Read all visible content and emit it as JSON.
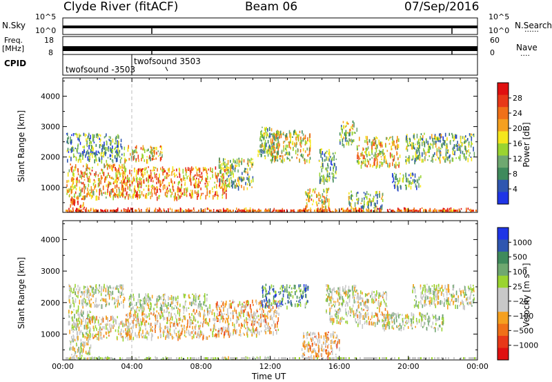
{
  "header": {
    "station": "Clyde River (fitACF)",
    "beam": "Beam 06",
    "date": "07/Sep/2016"
  },
  "nsky_panel": {
    "left_label": "N.Sky",
    "left_ticks": [
      "10^5",
      "10^0"
    ],
    "right_label": "N.Search",
    "right_dots": "......",
    "right_ticks": [
      "10^5",
      "10^0"
    ]
  },
  "freq_panel": {
    "left_label_line1": "Freq.",
    "left_label_line2": "[MHz]",
    "left_ticks": [
      "18",
      "8"
    ],
    "right_label": "Nave",
    "right_dots": "....",
    "right_ticks": [
      "60",
      "0"
    ]
  },
  "cpid_panel": {
    "label": "CPID",
    "entries": [
      {
        "text": "twofsound -3503",
        "start_hour": 0.0
      },
      {
        "text": "twofsound 3503",
        "start_hour": 4.0
      }
    ]
  },
  "power_panel": {
    "ylabel": "Slant Range [km]",
    "yticks": [
      1000,
      2000,
      3000,
      4000
    ],
    "colorbar_label": "Power [dB]",
    "colorbar_ticks": [
      4,
      8,
      12,
      16,
      20,
      24,
      28
    ],
    "colors": [
      "#1f35e6",
      "#2f56b0",
      "#3f8a5c",
      "#6fa870",
      "#9ad430",
      "#f5e61c",
      "#f5a020",
      "#f07018",
      "#e83818",
      "#e01010"
    ]
  },
  "velocity_panel": {
    "ylabel": "Slant Range [km]",
    "yticks": [
      1000,
      2000,
      3000,
      4000
    ],
    "colorbar_label": "Velocity [m s⁻¹]",
    "colorbar_ticks": [
      "1000",
      "500",
      "100",
      "25",
      "−25",
      "−100",
      "−500",
      "−1000"
    ],
    "colors": [
      "#1f35e6",
      "#2f56b0",
      "#3f8a5c",
      "#6fa870",
      "#9ad430",
      "#c8c8c8",
      "#c8c8c8",
      "#f5a020",
      "#f07018",
      "#e83818",
      "#e01010"
    ]
  },
  "time_axis": {
    "xlabel": "Time UT",
    "ticks": [
      "00:00",
      "04:00",
      "08:00",
      "12:00",
      "16:00",
      "20:00",
      "00:00"
    ]
  },
  "chart_data": [
    {
      "type": "heatmap",
      "title": "Power",
      "xlabel": "Time UT",
      "ylabel": "Slant Range [km]",
      "xlim": [
        0,
        24
      ],
      "ylim": [
        180,
        4600
      ],
      "colorbar": {
        "label": "Power [dB]",
        "range": [
          0,
          32
        ]
      },
      "grid": false,
      "regions": [
        {
          "t": [
            0.2,
            3.4
          ],
          "r": [
            1900,
            2800
          ],
          "value": 10
        },
        {
          "t": [
            0.2,
            3.6
          ],
          "r": [
            700,
            1800
          ],
          "value": 20
        },
        {
          "t": [
            0.4,
            1.3
          ],
          "r": [
            180,
            700
          ],
          "value": 26
        },
        {
          "t": [
            3.3,
            9.5
          ],
          "r": [
            700,
            1700
          ],
          "value": 22
        },
        {
          "t": [
            3.5,
            5.8
          ],
          "r": [
            1900,
            2400
          ],
          "value": 18
        },
        {
          "t": [
            9.0,
            11.0
          ],
          "r": [
            1000,
            2000
          ],
          "value": 14
        },
        {
          "t": [
            11.2,
            12.5
          ],
          "r": [
            2000,
            3000
          ],
          "value": 12
        },
        {
          "t": [
            12.0,
            14.3
          ],
          "r": [
            1900,
            2900
          ],
          "value": 16
        },
        {
          "t": [
            14.0,
            15.4
          ],
          "r": [
            250,
            1000
          ],
          "value": 17
        },
        {
          "t": [
            14.8,
            15.8
          ],
          "r": [
            1200,
            2300
          ],
          "value": 10
        },
        {
          "t": [
            16.0,
            17.0
          ],
          "r": [
            2400,
            3200
          ],
          "value": 14
        },
        {
          "t": [
            17.0,
            19.5
          ],
          "r": [
            1700,
            2700
          ],
          "value": 18
        },
        {
          "t": [
            19.8,
            23.8
          ],
          "r": [
            1900,
            2800
          ],
          "value": 12
        },
        {
          "t": [
            19.0,
            20.7
          ],
          "r": [
            1000,
            1500
          ],
          "value": 10
        },
        {
          "t": [
            16.5,
            18.5
          ],
          "r": [
            180,
            900
          ],
          "value": 12
        },
        {
          "t": [
            0.2,
            23.8
          ],
          "r": [
            180,
            350
          ],
          "value": 26
        }
      ]
    },
    {
      "type": "heatmap",
      "title": "Velocity",
      "xlabel": "Time UT",
      "ylabel": "Slant Range [km]",
      "xlim": [
        0,
        24
      ],
      "ylim": [
        180,
        4600
      ],
      "colorbar": {
        "label": "Velocity [m s⁻¹]",
        "range": [
          -1000,
          1000
        ]
      },
      "grid": false,
      "regions": [
        {
          "t": [
            0.3,
            3.6
          ],
          "r": [
            1900,
            2600
          ],
          "value": 0
        },
        {
          "t": [
            0.3,
            1.6
          ],
          "r": [
            180,
            1800
          ],
          "value": 0
        },
        {
          "t": [
            1.3,
            3.8
          ],
          "r": [
            900,
            1600
          ],
          "value": -150
        },
        {
          "t": [
            3.6,
            8.8
          ],
          "r": [
            900,
            1800
          ],
          "value": -200
        },
        {
          "t": [
            3.8,
            8.5
          ],
          "r": [
            1800,
            2300
          ],
          "value": 60
        },
        {
          "t": [
            8.8,
            12.5
          ],
          "r": [
            1000,
            2100
          ],
          "value": -250
        },
        {
          "t": [
            11.5,
            14.2
          ],
          "r": [
            1900,
            2600
          ],
          "value": 500
        },
        {
          "t": [
            13.8,
            16.0
          ],
          "r": [
            180,
            1100
          ],
          "value": -300
        },
        {
          "t": [
            15.2,
            17.0
          ],
          "r": [
            1400,
            2600
          ],
          "value": 0
        },
        {
          "t": [
            17.0,
            18.8
          ],
          "r": [
            1300,
            2400
          ],
          "value": -100
        },
        {
          "t": [
            20.2,
            23.8
          ],
          "r": [
            1900,
            2600
          ],
          "value": 0
        },
        {
          "t": [
            18.5,
            22.0
          ],
          "r": [
            1200,
            1700
          ],
          "value": 40
        },
        {
          "t": [
            0.3,
            12.0
          ],
          "r": [
            180,
            300
          ],
          "value": 60
        }
      ]
    }
  ]
}
